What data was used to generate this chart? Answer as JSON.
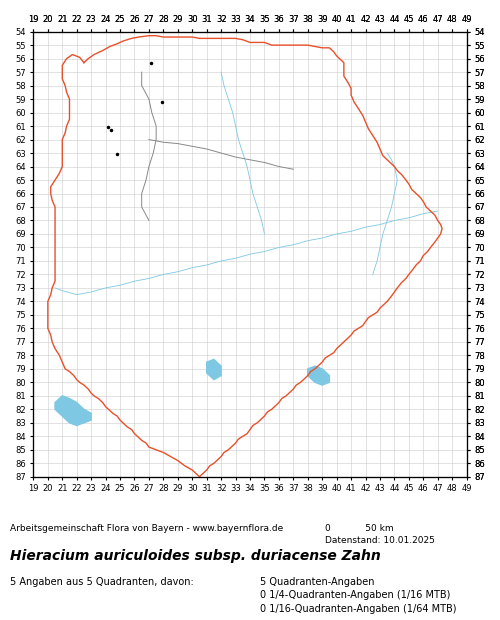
{
  "title": "Hieracium auriculoides subsp. duriacense Zahn",
  "subtitle": "Arbeitsgemeinschaft Flora von Bayern - www.bayernflora.de",
  "date_text": "Datenstand: 10.01.2025",
  "scale_text": "0            50 km",
  "stats_left": "5 Angaben aus 5 Quadranten, davon:",
  "stats_right": [
    "5 Quadranten-Angaben",
    "0 1/4-Quadranten-Angaben (1/16 MTB)",
    "0 1/16-Quadranten-Angaben (1/64 MTB)"
  ],
  "x_ticks": [
    19,
    20,
    21,
    22,
    23,
    24,
    25,
    26,
    27,
    28,
    29,
    30,
    31,
    32,
    33,
    34,
    35,
    36,
    37,
    38,
    39,
    40,
    41,
    42,
    43,
    44,
    45,
    46,
    47,
    48,
    49
  ],
  "y_ticks": [
    54,
    55,
    56,
    57,
    58,
    59,
    60,
    61,
    62,
    63,
    64,
    65,
    66,
    67,
    68,
    69,
    70,
    71,
    72,
    73,
    74,
    75,
    76,
    77,
    78,
    79,
    80,
    81,
    82,
    83,
    84,
    85,
    86,
    87
  ],
  "x_min": 19,
  "x_max": 49,
  "y_min": 54,
  "y_max": 87,
  "background_color": "#ffffff",
  "grid_color": "#cccccc",
  "border_color_red": "#e8502a",
  "border_color_gray": "#888888",
  "river_color": "#7ec8e3",
  "point_color": "#111111",
  "data_points": [
    [
      27.15,
      56.3
    ],
    [
      27.9,
      59.2
    ],
    [
      24.2,
      61.1
    ],
    [
      24.35,
      61.3
    ],
    [
      24.8,
      63.1
    ]
  ],
  "lake_color": "#7ec8e3"
}
